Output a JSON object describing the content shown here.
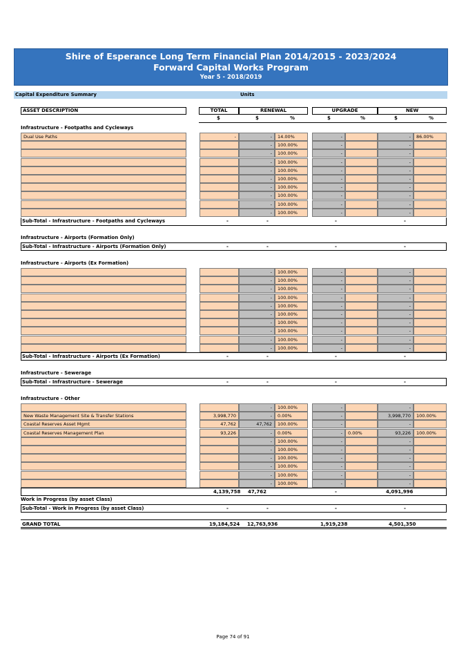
{
  "header": {
    "title": "Shire of Esperance Long Term Financial Plan 2014/2015 - 2023/2024",
    "subtitle": "Forward Capital Works Program",
    "year": "Year 5 - 2018/2019"
  },
  "summary": {
    "label": "Capital Expenditure Summary",
    "units": "Units"
  },
  "columns": {
    "asset": "ASSET DESCRIPTION",
    "total": "TOTAL",
    "renewal": "RENEWAL",
    "upgrade": "UPGRADE",
    "new": "NEW",
    "dollar": "$",
    "percent": "%"
  },
  "dash": "-",
  "sections": {
    "footpaths": {
      "title": "Infrastructure - Footpaths and Cycleways",
      "rows": [
        {
          "desc": "Dual Use Paths",
          "total": "-",
          "ren": "-",
          "ren_pct": "14.00%",
          "upg": "-",
          "upg_pct": "",
          "new": "-",
          "new_pct": "86.00%"
        },
        {
          "desc": "",
          "total": "",
          "ren": "-",
          "ren_pct": "100.00%",
          "upg": "-",
          "upg_pct": "",
          "new": "-",
          "new_pct": ""
        },
        {
          "desc": "",
          "total": "",
          "ren": "-",
          "ren_pct": "100.00%",
          "upg": "-",
          "upg_pct": "",
          "new": "-",
          "new_pct": ""
        },
        {
          "desc": "",
          "total": "",
          "ren": "-",
          "ren_pct": "100.00%",
          "upg": "-",
          "upg_pct": "",
          "new": "-",
          "new_pct": ""
        },
        {
          "desc": "",
          "total": "",
          "ren": "-",
          "ren_pct": "100.00%",
          "upg": "-",
          "upg_pct": "",
          "new": "-",
          "new_pct": ""
        },
        {
          "desc": "",
          "total": "",
          "ren": "-",
          "ren_pct": "100.00%",
          "upg": "-",
          "upg_pct": "",
          "new": "-",
          "new_pct": ""
        },
        {
          "desc": "",
          "total": "",
          "ren": "-",
          "ren_pct": "100.00%",
          "upg": "-",
          "upg_pct": "",
          "new": "-",
          "new_pct": ""
        },
        {
          "desc": "",
          "total": "",
          "ren": "-",
          "ren_pct": "100.00%",
          "upg": "-",
          "upg_pct": "",
          "new": "-",
          "new_pct": ""
        },
        {
          "desc": "",
          "total": "",
          "ren": "-",
          "ren_pct": "100.00%",
          "upg": "-",
          "upg_pct": "",
          "new": "-",
          "new_pct": ""
        },
        {
          "desc": "",
          "total": "",
          "ren": "-",
          "ren_pct": "100.00%",
          "upg": "-",
          "upg_pct": "",
          "new": "-",
          "new_pct": ""
        }
      ],
      "subtotal": {
        "label": "Sub-Total - Infrastructure - Footpaths and Cycleways",
        "total": "-",
        "ren": "-",
        "upg": "-",
        "new": "-"
      }
    },
    "airports_formation": {
      "title": "Infrastructure - Airports (Formation Only)",
      "subtotal": {
        "label": "Sub-Total - Infrastructure - Airports (Formation Only)",
        "total": "-",
        "ren": "-",
        "upg": "-",
        "new": "-"
      }
    },
    "airports_ex": {
      "title": "Infrastructure - Airports (Ex Formation)",
      "rows": [
        {
          "desc": "",
          "total": "",
          "ren": "-",
          "ren_pct": "100.00%",
          "upg": "-",
          "upg_pct": "",
          "new": "-",
          "new_pct": ""
        },
        {
          "desc": "",
          "total": "",
          "ren": "-",
          "ren_pct": "100.00%",
          "upg": "-",
          "upg_pct": "",
          "new": "-",
          "new_pct": ""
        },
        {
          "desc": "",
          "total": "",
          "ren": "-",
          "ren_pct": "100.00%",
          "upg": "-",
          "upg_pct": "",
          "new": "-",
          "new_pct": ""
        },
        {
          "desc": "",
          "total": "",
          "ren": "-",
          "ren_pct": "100.00%",
          "upg": "-",
          "upg_pct": "",
          "new": "-",
          "new_pct": ""
        },
        {
          "desc": "",
          "total": "",
          "ren": "-",
          "ren_pct": "100.00%",
          "upg": "-",
          "upg_pct": "",
          "new": "-",
          "new_pct": ""
        },
        {
          "desc": "",
          "total": "",
          "ren": "-",
          "ren_pct": "100.00%",
          "upg": "-",
          "upg_pct": "",
          "new": "-",
          "new_pct": ""
        },
        {
          "desc": "",
          "total": "",
          "ren": "-",
          "ren_pct": "100.00%",
          "upg": "-",
          "upg_pct": "",
          "new": "-",
          "new_pct": ""
        },
        {
          "desc": "",
          "total": "",
          "ren": "-",
          "ren_pct": "100.00%",
          "upg": "-",
          "upg_pct": "",
          "new": "-",
          "new_pct": ""
        },
        {
          "desc": "",
          "total": "",
          "ren": "-",
          "ren_pct": "100.00%",
          "upg": "-",
          "upg_pct": "",
          "new": "-",
          "new_pct": ""
        },
        {
          "desc": "",
          "total": "",
          "ren": "-",
          "ren_pct": "100.00%",
          "upg": "-",
          "upg_pct": "",
          "new": "-",
          "new_pct": ""
        }
      ],
      "subtotal": {
        "label": "Sub-Total - Infrastructure - Airports (Ex Formation)",
        "total": "-",
        "ren": "-",
        "upg": "-",
        "new": "-"
      }
    },
    "sewerage": {
      "title": "Infrastructure - Sewerage",
      "subtotal": {
        "label": "Sub-Total - Infrastructure - Sewerage",
        "total": "-",
        "ren": "-",
        "upg": "-",
        "new": "-"
      }
    },
    "other": {
      "title": "Infrastructure - Other",
      "rows": [
        {
          "desc": "",
          "total": "",
          "ren": "-",
          "ren_pct": "100.00%",
          "upg": "-",
          "upg_pct": "",
          "new": "-",
          "new_pct": ""
        },
        {
          "desc": "New Waste Management Site & Transfer Stations",
          "total": "3,998,770",
          "ren": "-",
          "ren_pct": "0.00%",
          "upg": "-",
          "upg_pct": "",
          "new": "3,998,770",
          "new_pct": "100.00%"
        },
        {
          "desc": "Coastal Reserves Asset Mgmt",
          "total": "47,762",
          "ren": "47,762",
          "ren_pct": "100.00%",
          "upg": "-",
          "upg_pct": "",
          "new": "-",
          "new_pct": ""
        },
        {
          "desc": "Coastal Reserves Management Plan",
          "total": "93,226",
          "ren": "-",
          "ren_pct": "0.00%",
          "upg": "-",
          "upg_pct": "0.00%",
          "new": "93,226",
          "new_pct": "100.00%"
        },
        {
          "desc": "",
          "total": "",
          "ren": "-",
          "ren_pct": "100.00%",
          "upg": "-",
          "upg_pct": "",
          "new": "-",
          "new_pct": ""
        },
        {
          "desc": "",
          "total": "",
          "ren": "-",
          "ren_pct": "100.00%",
          "upg": "-",
          "upg_pct": "",
          "new": "-",
          "new_pct": ""
        },
        {
          "desc": "",
          "total": "",
          "ren": "-",
          "ren_pct": "100.00%",
          "upg": "-",
          "upg_pct": "",
          "new": "-",
          "new_pct": ""
        },
        {
          "desc": "",
          "total": "",
          "ren": "-",
          "ren_pct": "100.00%",
          "upg": "-",
          "upg_pct": "",
          "new": "-",
          "new_pct": ""
        },
        {
          "desc": "",
          "total": "",
          "ren": "-",
          "ren_pct": "100.00%",
          "upg": "-",
          "upg_pct": "",
          "new": "-",
          "new_pct": ""
        },
        {
          "desc": "",
          "total": "",
          "ren": "-",
          "ren_pct": "100.00%",
          "upg": "-",
          "upg_pct": "",
          "new": "-",
          "new_pct": ""
        }
      ],
      "subtotal": {
        "label": "",
        "total": "4,139,758",
        "ren": "47,762",
        "upg": "-",
        "new": "4,091,996"
      }
    },
    "wip": {
      "title": "Work in Progress (by asset Class)",
      "subtotal": {
        "label": "Sub-Total - Work in Progress (by asset Class)",
        "total": "-",
        "ren": "-",
        "upg": "-",
        "new": "-"
      }
    }
  },
  "grand_total": {
    "label": "GRAND TOTAL",
    "total": "19,184,524",
    "ren": "12,763,936",
    "upg": "1,919,238",
    "new": "4,501,350"
  },
  "footer": "Page 74 of 91",
  "colors": {
    "banner": "#3574be",
    "summary_bar": "#b7d6ef",
    "input_cell": "#fcd5b4",
    "calc_cell": "#bfbfbf"
  }
}
